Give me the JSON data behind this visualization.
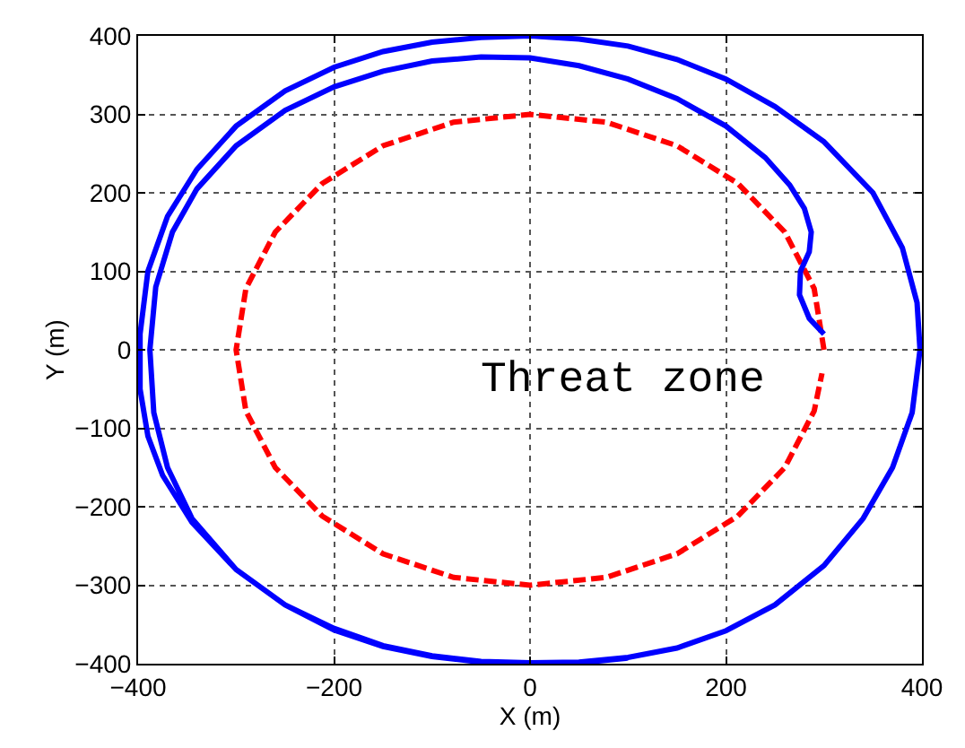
{
  "chart_data": {
    "type": "line",
    "xlabel": "X (m)",
    "ylabel": "Y (m)",
    "series": [
      {
        "color": "#ff0000",
        "line_style": "dashed",
        "x": [
          300,
          290,
          260,
          212,
          150,
          78,
          0,
          -78,
          -150,
          -212,
          -260,
          -290,
          -300,
          -290,
          -260,
          -212,
          -150,
          -78,
          0,
          78,
          150,
          212,
          260,
          290,
          298
        ],
        "values": [
          0,
          78,
          150,
          212,
          260,
          290,
          300,
          290,
          260,
          212,
          150,
          78,
          0,
          -78,
          -150,
          -212,
          -260,
          -290,
          -300,
          -290,
          -260,
          -212,
          -150,
          -78,
          -30
        ]
      },
      {
        "color": "#0000ff",
        "line_style": "solid",
        "x": [
          300,
          285,
          275,
          276,
          285,
          287,
          280,
          265,
          240,
          200,
          150,
          100,
          50,
          0,
          -50,
          -100,
          -150,
          -200,
          -250,
          -300,
          -340,
          -365,
          -382,
          -388,
          -384,
          -370,
          -345,
          -300,
          -250,
          -200,
          -150,
          -100,
          -50,
          0,
          50,
          100,
          150,
          200,
          250,
          300,
          340,
          370,
          390,
          398,
          395,
          380,
          350,
          300,
          250,
          200,
          150,
          100,
          50,
          0,
          -50,
          -100,
          -150,
          -200,
          -250,
          -300,
          -340,
          -370,
          -390,
          -398,
          -398,
          -390,
          -375,
          -345,
          -300,
          -250,
          -200,
          -150,
          -100,
          -50,
          0,
          50,
          100
        ],
        "values": [
          20,
          40,
          70,
          100,
          125,
          150,
          180,
          210,
          245,
          285,
          320,
          345,
          362,
          372,
          373,
          368,
          355,
          335,
          305,
          260,
          205,
          150,
          80,
          0,
          -80,
          -150,
          -215,
          -280,
          -325,
          -355,
          -377,
          -390,
          -397,
          -399,
          -398,
          -392,
          -380,
          -358,
          -325,
          -275,
          -215,
          -150,
          -80,
          0,
          60,
          130,
          200,
          265,
          310,
          345,
          370,
          387,
          396,
          400,
          398,
          392,
          380,
          360,
          330,
          285,
          230,
          170,
          100,
          20,
          -50,
          -110,
          -160,
          -220,
          -280,
          -325,
          -357,
          -378,
          -391,
          -398,
          -400,
          -399,
          -393
        ]
      }
    ],
    "xlim": [
      -400,
      400
    ],
    "xticks": [
      -400,
      -200,
      0,
      200,
      400
    ],
    "ylim": [
      -400,
      400
    ],
    "yticks": [
      -400,
      -300,
      -200,
      -100,
      0,
      100,
      200,
      300,
      400
    ],
    "grid": true,
    "legend": false,
    "annotations": [
      "Threat zone"
    ]
  }
}
